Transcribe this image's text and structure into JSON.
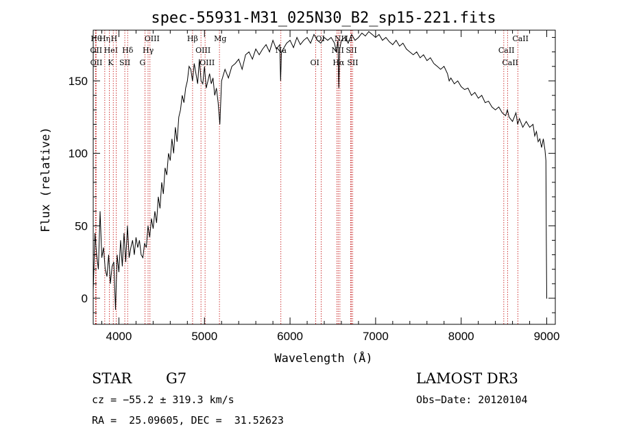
{
  "chart_data": {
    "type": "line",
    "title": "spec-55931-M31_025N30_B2_sp15-221.fits",
    "xlabel": "Wavelength (Å)",
    "ylabel": "Flux (relative)",
    "xlim": [
      3700,
      9100
    ],
    "ylim": [
      -18,
      185
    ],
    "xticks": [
      4000,
      5000,
      6000,
      7000,
      8000,
      9000
    ],
    "yticks": [
      0,
      50,
      100,
      150
    ],
    "grid": false,
    "series": [
      {
        "name": "flux",
        "x": [
          3700,
          3720,
          3740,
          3760,
          3780,
          3800,
          3820,
          3840,
          3860,
          3880,
          3900,
          3920,
          3940,
          3960,
          3980,
          4000,
          4020,
          4040,
          4060,
          4080,
          4100,
          4120,
          4140,
          4160,
          4180,
          4200,
          4220,
          4240,
          4260,
          4280,
          4300,
          4320,
          4340,
          4360,
          4380,
          4400,
          4420,
          4440,
          4460,
          4480,
          4500,
          4520,
          4540,
          4560,
          4580,
          4600,
          4620,
          4640,
          4660,
          4680,
          4700,
          4720,
          4740,
          4760,
          4780,
          4800,
          4820,
          4840,
          4860,
          4880,
          4900,
          4920,
          4940,
          4960,
          4980,
          5000,
          5020,
          5040,
          5060,
          5080,
          5100,
          5120,
          5140,
          5160,
          5180,
          5200,
          5240,
          5280,
          5320,
          5360,
          5400,
          5440,
          5480,
          5520,
          5560,
          5600,
          5640,
          5680,
          5720,
          5760,
          5800,
          5840,
          5880,
          5890,
          5900,
          5920,
          5960,
          6000,
          6040,
          6080,
          6120,
          6160,
          6200,
          6240,
          6280,
          6320,
          6360,
          6400,
          6440,
          6480,
          6520,
          6540,
          6560,
          6570,
          6580,
          6600,
          6640,
          6680,
          6720,
          6760,
          6800,
          6840,
          6880,
          6920,
          6960,
          7000,
          7040,
          7080,
          7120,
          7160,
          7200,
          7240,
          7280,
          7320,
          7360,
          7400,
          7440,
          7480,
          7520,
          7560,
          7600,
          7640,
          7680,
          7720,
          7760,
          7800,
          7840,
          7860,
          7880,
          7920,
          7960,
          8000,
          8040,
          8080,
          8120,
          8160,
          8200,
          8240,
          8280,
          8320,
          8360,
          8400,
          8440,
          8480,
          8520,
          8540,
          8560,
          8600,
          8640,
          8660,
          8680,
          8720,
          8760,
          8800,
          8840,
          8860,
          8880,
          8900,
          8920,
          8940,
          8960,
          8980,
          8990,
          8995,
          9000,
          9005
        ],
        "values": [
          5,
          45,
          30,
          20,
          60,
          28,
          35,
          20,
          15,
          30,
          10,
          22,
          25,
          -8,
          30,
          18,
          40,
          22,
          45,
          25,
          50,
          28,
          35,
          40,
          30,
          42,
          35,
          40,
          30,
          28,
          38,
          35,
          50,
          42,
          55,
          48,
          60,
          52,
          70,
          62,
          80,
          72,
          90,
          85,
          100,
          95,
          110,
          100,
          118,
          108,
          125,
          130,
          140,
          135,
          145,
          150,
          160,
          158,
          150,
          162,
          155,
          148,
          165,
          150,
          148,
          160,
          145,
          150,
          155,
          148,
          152,
          140,
          145,
          135,
          120,
          150,
          158,
          152,
          160,
          162,
          165,
          158,
          168,
          170,
          165,
          172,
          168,
          172,
          175,
          170,
          178,
          172,
          175,
          150,
          170,
          172,
          176,
          178,
          173,
          180,
          175,
          178,
          180,
          176,
          182,
          178,
          176,
          180,
          178,
          180,
          176,
          170,
          178,
          145,
          172,
          178,
          180,
          176,
          182,
          178,
          180,
          183,
          181,
          184,
          182,
          180,
          182,
          178,
          180,
          177,
          175,
          178,
          174,
          176,
          172,
          170,
          168,
          170,
          166,
          168,
          164,
          166,
          162,
          160,
          158,
          160,
          155,
          150,
          152,
          148,
          150,
          146,
          144,
          145,
          140,
          142,
          138,
          140,
          135,
          136,
          132,
          130,
          132,
          128,
          126,
          130,
          125,
          122,
          128,
          120,
          124,
          118,
          122,
          118,
          120,
          112,
          115,
          108,
          110,
          104,
          110,
          102,
          95,
          40,
          0,
          0
        ],
        "color": "#000000"
      }
    ],
    "emission_lines": [
      {
        "label": "Hθ",
        "x": 3734
      },
      {
        "label": "OII",
        "x": 3727
      },
      {
        "label": "OII",
        "x": 3729
      },
      {
        "label": "Hη",
        "x": 3835
      },
      {
        "label": "HeI",
        "x": 3889
      },
      {
        "label": "K",
        "x": 3934
      },
      {
        "label": "H",
        "x": 3968
      },
      {
        "label": "Hδ",
        "x": 4102
      },
      {
        "label": "SII",
        "x": 4069
      },
      {
        "label": "OIII",
        "x": 4363
      },
      {
        "label": "Hγ",
        "x": 4341
      },
      {
        "label": "G",
        "x": 4305
      },
      {
        "label": "Hβ",
        "x": 4861
      },
      {
        "label": "OIII",
        "x": 4959
      },
      {
        "label": "OIII",
        "x": 5007
      },
      {
        "label": "Mg",
        "x": 5175
      },
      {
        "label": "Na",
        "x": 5893
      },
      {
        "label": "OI",
        "x": 6300
      },
      {
        "label": "OI",
        "x": 6364
      },
      {
        "label": "NII",
        "x": 6548
      },
      {
        "label": "Hα",
        "x": 6563
      },
      {
        "label": "NII",
        "x": 6583
      },
      {
        "label": "SII",
        "x": 6716
      },
      {
        "label": "SII",
        "x": 6731
      },
      {
        "label": "Li",
        "x": 6708
      },
      {
        "label": "CaII",
        "x": 8498
      },
      {
        "label": "CaII",
        "x": 8542
      },
      {
        "label": "CaII",
        "x": 8662
      }
    ]
  },
  "info": {
    "star": "STAR",
    "class": "G7",
    "survey": "LAMOST DR3",
    "cz": "cz = −55.2 ± 319.3 km/s",
    "obs_date": "Obs−Date: 20120104",
    "radec": "RA =  25.09605, DEC =  31.52623"
  }
}
